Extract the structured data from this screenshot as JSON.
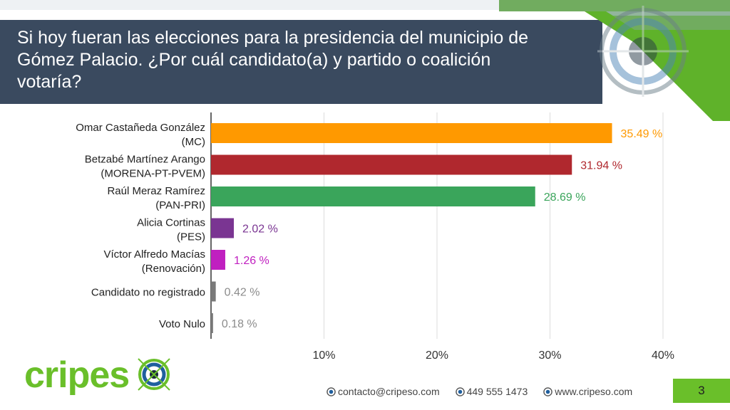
{
  "title": "Si hoy fueran las elecciones para la presidencia del municipio de Gómez Palacio. ¿Por cuál candidato(a) y partido o coalición votaría?",
  "brand": {
    "name_part1": "cripes",
    "name_part2": "o",
    "icon": "target-icon"
  },
  "footer": {
    "email": "contacto@cripeso.com",
    "phone": "449 555 1473",
    "website": "www.cripeso.com",
    "page_number": "3",
    "contact_icon": "target-icon"
  },
  "colors": {
    "header": "#3a4a5f",
    "accent_green": "#6abf2a",
    "brand_blue": "#1f5f9e"
  },
  "chart_data": {
    "type": "bar",
    "orientation": "horizontal",
    "categories": [
      [
        "Omar Castañeda González",
        "(MC)"
      ],
      [
        "Betzabé Martínez Arango",
        "(MORENA-PT-PVEM)"
      ],
      [
        "Raúl Meraz Ramírez",
        "(PAN-PRI)"
      ],
      [
        "Alicia Cortinas",
        "(PES)"
      ],
      [
        "Víctor Alfredo Macías",
        "(Renovación)"
      ],
      [
        "Candidato no registrado"
      ],
      [
        "Voto Nulo"
      ]
    ],
    "values": [
      35.49,
      31.94,
      28.69,
      2.02,
      1.26,
      0.42,
      0.18
    ],
    "value_labels": [
      "35.49 %",
      "31.94 %",
      "28.69 %",
      "2.02 %",
      "1.26 %",
      "0.42 %",
      "0.18 %"
    ],
    "colors": [
      "#ff9900",
      "#b0282e",
      "#3aa55b",
      "#7a3592",
      "#c020c0",
      "#7a7a7a",
      "#7a7a7a"
    ],
    "label_colors": [
      "#ff9900",
      "#b0282e",
      "#3aa55b",
      "#7a3592",
      "#c020c0",
      "#8c8c8c",
      "#8c8c8c"
    ],
    "xlim": [
      0,
      40
    ],
    "xticks": [
      10,
      20,
      30,
      40
    ],
    "xtick_labels": [
      "10%",
      "20%",
      "30%",
      "40%"
    ],
    "grid": true
  }
}
